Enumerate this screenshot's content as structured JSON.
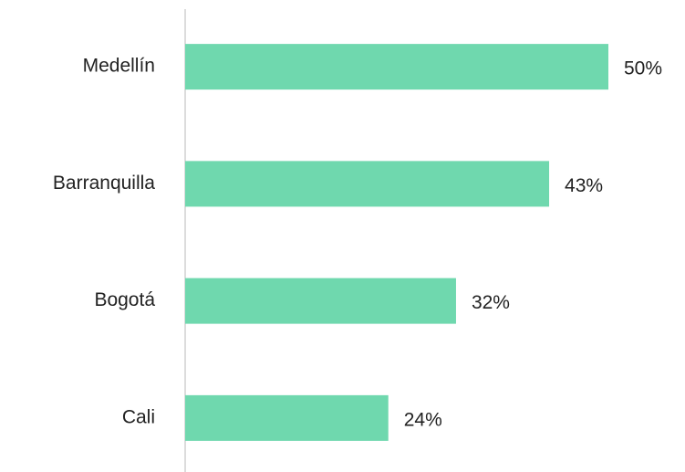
{
  "chart_data": {
    "type": "bar",
    "orientation": "horizontal",
    "categories": [
      "Medellín",
      "Barranquilla",
      "Bogotá",
      "Cali"
    ],
    "values": [
      50,
      43,
      32,
      24
    ],
    "value_labels": [
      "50%",
      "43%",
      "32%",
      "24%"
    ],
    "color": "#6fd8ae"
  }
}
